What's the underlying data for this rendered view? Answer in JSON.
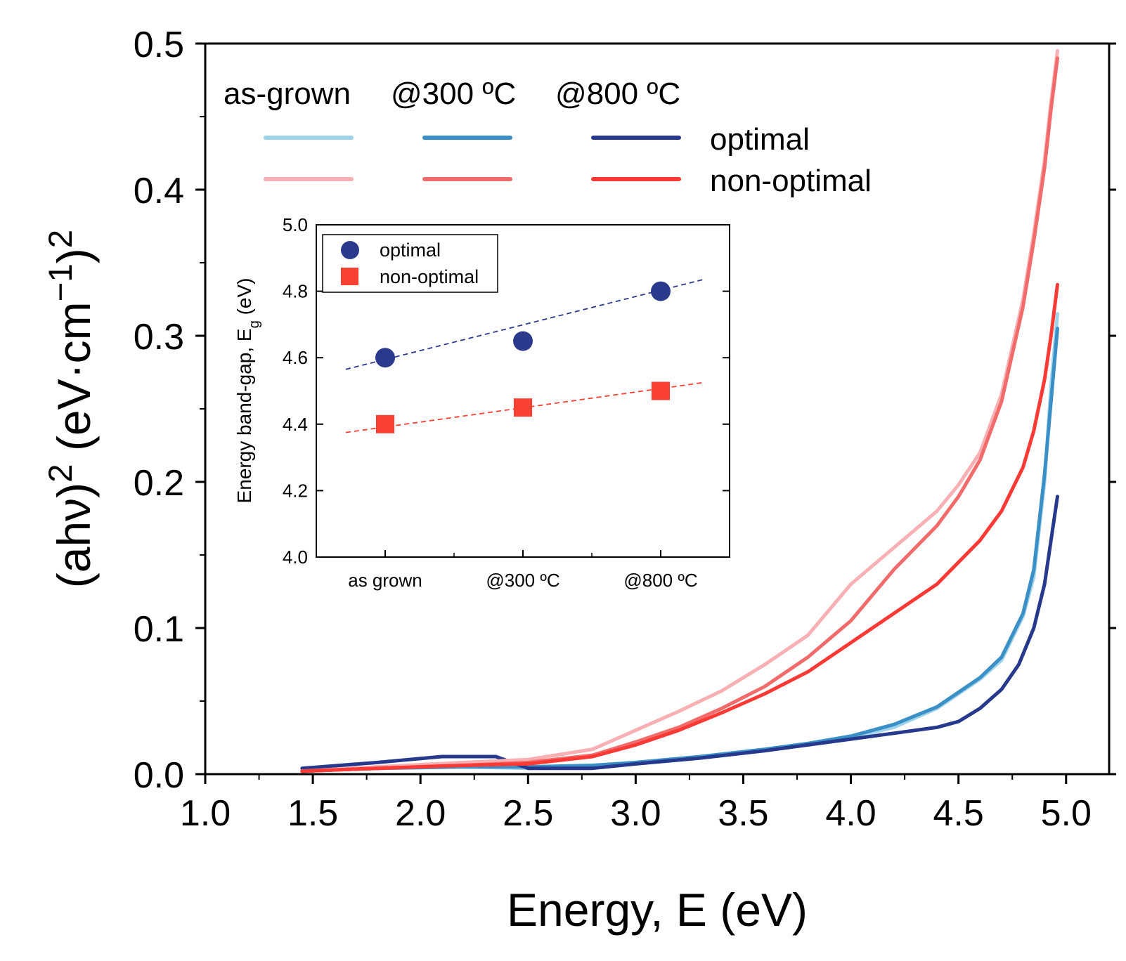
{
  "chart_data": [
    {
      "type": "line",
      "xlabel": "Energy, E (eV)",
      "ylabel": {
        "prefix": "(ahν)",
        "exp1": "2",
        "middle": " (eV·cm",
        "exp2": "−1",
        "close": ")",
        "exp3": "2"
      },
      "xlim": [
        1.0,
        5.2
      ],
      "ylim": [
        0.0,
        0.5
      ],
      "xticks": [
        1.0,
        1.5,
        2.0,
        2.5,
        3.0,
        3.5,
        4.0,
        4.5,
        5.0
      ],
      "xtick_labels": [
        "1.0",
        "1.5",
        "2.0",
        "2.5",
        "3.0",
        "3.5",
        "4.0",
        "4.5",
        "5.0"
      ],
      "yticks": [
        0.0,
        0.1,
        0.2,
        0.3,
        0.4,
        0.5
      ],
      "ytick_labels": [
        "0.0",
        "0.1",
        "0.2",
        "0.3",
        "0.4",
        "0.5"
      ],
      "legend": {
        "headers": [
          "as-grown",
          "@300 ºC",
          "@800 ºC"
        ],
        "rows": [
          "optimal",
          "non-optimal"
        ]
      },
      "series": [
        {
          "name": "optimal, as-grown",
          "color": "#9fd3ea",
          "x": [
            1.45,
            1.8,
            2.2,
            2.5,
            2.8,
            3.0,
            3.3,
            3.6,
            3.8,
            4.0,
            4.2,
            4.4,
            4.5,
            4.6,
            4.7,
            4.8,
            4.85,
            4.9,
            4.93,
            4.96
          ],
          "y": [
            0.002,
            0.004,
            0.005,
            0.004,
            0.005,
            0.007,
            0.011,
            0.016,
            0.02,
            0.025,
            0.032,
            0.045,
            0.055,
            0.065,
            0.078,
            0.108,
            0.135,
            0.2,
            0.265,
            0.315
          ]
        },
        {
          "name": "optimal, @300 ºC",
          "color": "#3b8fc7",
          "x": [
            1.45,
            1.8,
            2.2,
            2.5,
            2.8,
            3.0,
            3.3,
            3.6,
            3.8,
            4.0,
            4.2,
            4.4,
            4.5,
            4.6,
            4.7,
            4.8,
            4.85,
            4.9,
            4.93,
            4.96
          ],
          "y": [
            0.002,
            0.004,
            0.005,
            0.005,
            0.006,
            0.008,
            0.012,
            0.017,
            0.021,
            0.026,
            0.034,
            0.046,
            0.056,
            0.066,
            0.08,
            0.11,
            0.14,
            0.205,
            0.255,
            0.305
          ]
        },
        {
          "name": "optimal, @800 ºC",
          "color": "#26398c",
          "x": [
            1.45,
            1.8,
            2.1,
            2.35,
            2.5,
            2.8,
            3.0,
            3.3,
            3.6,
            3.8,
            4.0,
            4.2,
            4.4,
            4.5,
            4.6,
            4.7,
            4.78,
            4.85,
            4.9,
            4.93,
            4.96
          ],
          "y": [
            0.004,
            0.008,
            0.012,
            0.012,
            0.004,
            0.004,
            0.007,
            0.011,
            0.016,
            0.02,
            0.024,
            0.028,
            0.032,
            0.036,
            0.045,
            0.058,
            0.075,
            0.1,
            0.13,
            0.16,
            0.19
          ]
        },
        {
          "name": "non-optimal, as-grown",
          "color": "#f8b0b4",
          "x": [
            1.45,
            1.8,
            2.2,
            2.5,
            2.8,
            3.0,
            3.2,
            3.4,
            3.6,
            3.8,
            4.0,
            4.2,
            4.4,
            4.5,
            4.6,
            4.7,
            4.8,
            4.85,
            4.9,
            4.93,
            4.96
          ],
          "y": [
            0.002,
            0.005,
            0.008,
            0.01,
            0.017,
            0.03,
            0.043,
            0.057,
            0.075,
            0.095,
            0.13,
            0.155,
            0.18,
            0.198,
            0.22,
            0.26,
            0.325,
            0.37,
            0.42,
            0.46,
            0.495
          ]
        },
        {
          "name": "non-optimal, @300 ºC",
          "color": "#f26b6b",
          "x": [
            1.45,
            1.8,
            2.2,
            2.5,
            2.8,
            3.0,
            3.2,
            3.4,
            3.6,
            3.8,
            4.0,
            4.2,
            4.4,
            4.5,
            4.6,
            4.7,
            4.8,
            4.85,
            4.9,
            4.93,
            4.96
          ],
          "y": [
            0.002,
            0.004,
            0.006,
            0.008,
            0.013,
            0.022,
            0.032,
            0.045,
            0.06,
            0.08,
            0.105,
            0.14,
            0.17,
            0.19,
            0.215,
            0.255,
            0.32,
            0.365,
            0.415,
            0.455,
            0.49
          ]
        },
        {
          "name": "non-optimal, @800 ºC",
          "color": "#fb3a35",
          "x": [
            1.45,
            1.8,
            2.2,
            2.5,
            2.8,
            3.0,
            3.2,
            3.4,
            3.6,
            3.8,
            4.0,
            4.2,
            4.4,
            4.5,
            4.6,
            4.7,
            4.75,
            4.8,
            4.85,
            4.9,
            4.93,
            4.96
          ],
          "y": [
            0.002,
            0.004,
            0.006,
            0.007,
            0.012,
            0.02,
            0.03,
            0.042,
            0.055,
            0.07,
            0.09,
            0.11,
            0.13,
            0.145,
            0.16,
            0.18,
            0.195,
            0.21,
            0.235,
            0.27,
            0.3,
            0.335
          ]
        }
      ]
    },
    {
      "type": "scatter",
      "xlabel": "",
      "ylabel": {
        "main": "Energy band-gap, E",
        "sub": "g",
        "unit": " (eV)"
      },
      "categories": [
        "as grown",
        "@300 ºC",
        "@800 ºC"
      ],
      "ylim": [
        4.0,
        5.0
      ],
      "yticks": [
        4.0,
        4.2,
        4.4,
        4.6,
        4.8,
        5.0
      ],
      "ytick_labels": [
        "4.0",
        "4.2",
        "4.4",
        "4.6",
        "4.8",
        "5.0"
      ],
      "legend": [
        "optimal",
        "non-optimal"
      ],
      "series": [
        {
          "name": "optimal",
          "marker": "circle",
          "color": "#2b3a8c",
          "values": [
            4.6,
            4.65,
            4.8
          ],
          "fit": [
            4.565,
            4.835
          ]
        },
        {
          "name": "non-optimal",
          "marker": "square",
          "color": "#f84033",
          "values": [
            4.4,
            4.45,
            4.5
          ],
          "fit": [
            4.375,
            4.525
          ]
        }
      ]
    }
  ]
}
